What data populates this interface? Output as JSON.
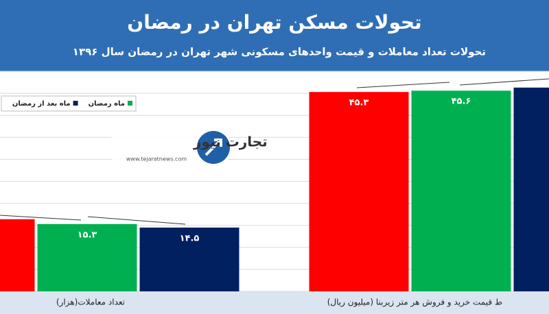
{
  "header": {
    "title": "تحولات مسکن تهران در رمضان",
    "subtitle": "تحولات تعداد معاملات و قیمت واحدهای مسکونی شهر تهران در رمضان سال ۱۳۹۶"
  },
  "watermark": {
    "name": "تجارت نیوز",
    "url": "www.tejaratnews.com"
  },
  "chart_data": {
    "type": "bar",
    "categories": [
      "تعداد معاملات(هزار)",
      "ط قیمت خرید و فروش هر متر زیربنا (میلیون ریال)"
    ],
    "series": [
      {
        "color": "#ff0000",
        "values": [
          16.4,
          45.3
        ],
        "value_labels": [
          null,
          "۴۵.۳"
        ]
      },
      {
        "name": "ماه رمضان",
        "color": "#00b050",
        "values": [
          15.3,
          45.6
        ],
        "value_labels": [
          "۱۵.۳",
          "۴۵.۶"
        ]
      },
      {
        "name": "ماه بعد از رمضان",
        "color": "#002060",
        "values": [
          14.5,
          46.3
        ],
        "value_labels": [
          "۱۴.۵",
          null
        ]
      }
    ],
    "ylim": [
      0,
      50
    ],
    "yticks": [
      0,
      5,
      10,
      15,
      20,
      25,
      30,
      35,
      40,
      45,
      50
    ],
    "grid": true
  }
}
